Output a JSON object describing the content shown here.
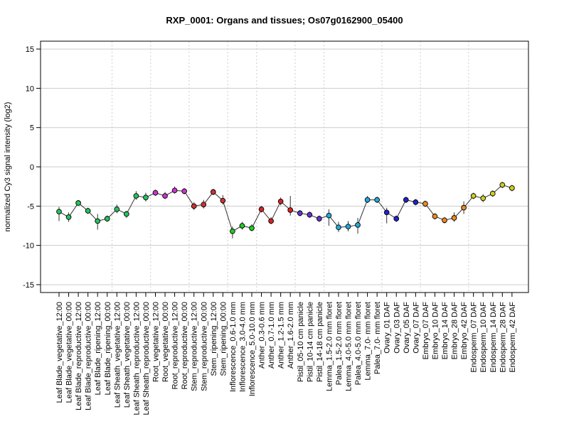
{
  "chart_data": {
    "type": "scatter",
    "title": "RXP_0001: Organs and tissues; Os07g0162900_05400",
    "xlabel": "",
    "ylabel": "normalized Cy3 signal intensity (log2)",
    "ylim": [
      -16,
      16
    ],
    "yticks": [
      -15,
      -10,
      -5,
      0,
      5,
      10,
      15
    ],
    "grid": true,
    "categories": [
      "Leaf Blade_vegetative_12:00",
      "Leaf Blade_vegetative_00:00",
      "Leaf Blade_reproductive_12:00",
      "Leaf Blade_reproductive_00:00",
      "Leaf Blade_ripening_12:00",
      "Leaf Blade_ripening_00:00",
      "Leaf Sheath_vegetative_12:00",
      "Leaf Sheath_vegetative_00:00",
      "Leaf Sheath_reproductive_12:00",
      "Leaf Sheath_reproductive_00:00",
      "Root_vegetative_12:00",
      "Root_vegetative_00:00",
      "Root_reproductive_12:00",
      "Root_reproductive_00:00",
      "Stem_reproductive_12:00",
      "Stem_reproductive_00:00",
      "Stem_ripening_12:00",
      "Stem_ripening_00:00",
      "Inflorescence_0.6-1.0 mm",
      "Inflorescence_3.0-4.0 mm",
      "Inflorescence_5.0-10.0 mm",
      "Anther_0.3-0.6 mm",
      "Anther_0.7-1.0 mm",
      "Anther_1.2-1.5 mm",
      "Anther_1.6-2.0 mm",
      "Pistil_05-10 cm panicle",
      "Pistil_10-14 cm panicle",
      "Pistil_14-18 cm panicle",
      "Lemma_1.5-2.0 mm floret",
      "Palea_1.5-2.0 mm floret",
      "Lemma_4.0-5.0 mm floret",
      "Palea_4.0-5.0 mm floret",
      "Lemma_7.0- mm floret",
      "Palea_7.0- mm floret",
      "Ovary_01 DAF",
      "Ovary_03 DAF",
      "Ovary_05 DAF",
      "Ovary_07 DAF",
      "Embryo_07 DAF",
      "Embryo_10 DAF",
      "Embryo_14 DAF",
      "Embryo_28 DAF",
      "Embryo_42 DAF",
      "Endosperm_07 DAF",
      "Endosperm_10 DAF",
      "Endosperm_14 DAF",
      "Endosperm_28 DAF",
      "Endosperm_42 DAF"
    ],
    "values": [
      -5.7,
      -6.4,
      -4.6,
      -5.6,
      -6.9,
      -6.6,
      -5.4,
      -6.0,
      -3.7,
      -3.9,
      -3.3,
      -3.7,
      -3.0,
      -3.1,
      -5.0,
      -4.8,
      -3.2,
      -4.3,
      -8.2,
      -7.5,
      -7.8,
      -5.4,
      -6.9,
      -4.4,
      -5.5,
      -5.9,
      -6.1,
      -6.6,
      -6.2,
      -7.7,
      -7.6,
      -7.4,
      -4.2,
      -4.2,
      -5.8,
      -6.6,
      -4.2,
      -4.5,
      -4.7,
      -6.3,
      -6.8,
      -6.5,
      -5.2,
      -3.7,
      -4.0,
      -3.4,
      -2.3,
      -2.7
    ],
    "error_low": [
      -6.9,
      -7.0,
      -4.9,
      -6.0,
      -8.0,
      -7.0,
      -5.9,
      -6.5,
      -4.2,
      -4.4,
      -3.7,
      -4.1,
      -3.4,
      -3.5,
      -5.5,
      -5.3,
      -3.6,
      -4.8,
      -9.1,
      -8.0,
      -8.2,
      -5.8,
      -7.3,
      -4.9,
      -6.2,
      -6.3,
      -6.5,
      -7.0,
      -7.5,
      -8.3,
      -8.2,
      -8.5,
      -4.6,
      -4.6,
      -7.2,
      -7.0,
      -4.6,
      -4.9,
      -5.1,
      -6.7,
      -7.2,
      -7.0,
      -6.0,
      -4.1,
      -4.5,
      -3.8,
      -2.7,
      -3.1
    ],
    "error_high": [
      -5.1,
      -5.8,
      -4.3,
      -5.2,
      -6.0,
      -6.2,
      -4.8,
      -5.6,
      -3.1,
      -3.3,
      -2.9,
      -3.2,
      -2.5,
      -2.7,
      -4.5,
      -4.2,
      -2.8,
      -3.6,
      -7.6,
      -7.0,
      -7.3,
      -5.0,
      -6.4,
      -3.9,
      -3.7,
      -5.5,
      -5.7,
      -6.2,
      -5.4,
      -7.0,
      -6.9,
      -6.5,
      -3.7,
      -3.8,
      -5.2,
      -6.2,
      -3.8,
      -4.1,
      -4.3,
      -5.9,
      -6.4,
      -5.8,
      -4.4,
      -3.3,
      -3.5,
      -3.0,
      -1.9,
      -2.3
    ],
    "point_colors": [
      "#22c55e",
      "#22c55e",
      "#22c55e",
      "#22c55e",
      "#22c55e",
      "#22c55e",
      "#22c55e",
      "#22c55e",
      "#22c55e",
      "#22c55e",
      "#cc33cc",
      "#cc33cc",
      "#cc33cc",
      "#cc33cc",
      "#cc3333",
      "#cc3333",
      "#cc3333",
      "#cc3333",
      "#22cc22",
      "#22cc22",
      "#22cc22",
      "#dd2222",
      "#dd2222",
      "#dd2222",
      "#dd2222",
      "#6633cc",
      "#6633cc",
      "#6633cc",
      "#22aadd",
      "#22aadd",
      "#22aadd",
      "#22aadd",
      "#22aadd",
      "#22aadd",
      "#2222cc",
      "#2222cc",
      "#2222cc",
      "#2222cc",
      "#ee8822",
      "#ee8822",
      "#ee8822",
      "#ee8822",
      "#ee8822",
      "#cccc22",
      "#cccc22",
      "#cccc22",
      "#cccc22",
      "#cccc22"
    ],
    "group_separators_after": [
      5,
      9,
      13,
      17,
      20,
      24,
      27,
      33,
      37,
      42
    ]
  }
}
